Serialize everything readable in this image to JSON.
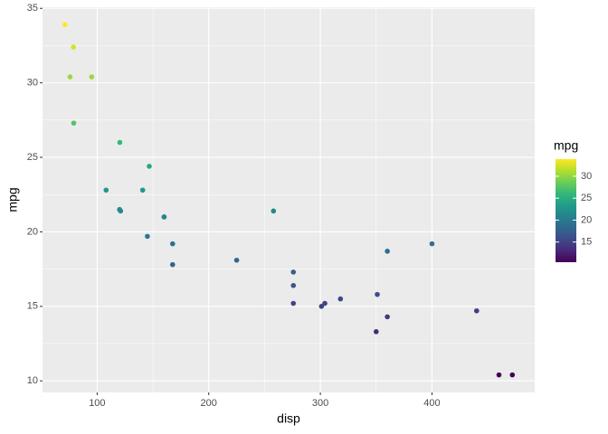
{
  "chart_data": {
    "type": "scatter",
    "x_label": "disp",
    "y_label": "mpg",
    "x": [
      160,
      160,
      108,
      258,
      360,
      225,
      360,
      146.7,
      140.8,
      167.6,
      167.6,
      275.8,
      275.8,
      275.8,
      472,
      460,
      440,
      78.7,
      75.7,
      71.1,
      120.1,
      318,
      304,
      350,
      400,
      79,
      120.3,
      95.1,
      351,
      145,
      301,
      121
    ],
    "values": [
      21.0,
      21.0,
      22.8,
      21.4,
      18.7,
      18.1,
      14.3,
      24.4,
      22.8,
      19.2,
      17.8,
      16.4,
      17.3,
      15.2,
      10.4,
      10.4,
      14.7,
      32.4,
      30.4,
      33.9,
      21.5,
      15.5,
      15.2,
      13.3,
      19.2,
      27.3,
      26.0,
      30.4,
      15.8,
      19.7,
      15.0,
      21.4
    ],
    "xlim": [
      51.05,
      492.05
    ],
    "xticks": [
      100,
      200,
      300,
      400
    ],
    "ylim": [
      9.225,
      35.075
    ],
    "yticks": [
      10,
      15,
      20,
      25,
      30,
      35
    ],
    "grid": true,
    "colorbar": {
      "title": "mpg",
      "lim": [
        10.4,
        33.9
      ],
      "ticks": [
        15,
        20,
        25,
        30
      ],
      "colors": [
        "#440154",
        "#482878",
        "#3e4a89",
        "#31688e",
        "#26828e",
        "#1f9e89",
        "#35b779",
        "#6dcd59",
        "#b4de2c",
        "#fde725"
      ]
    }
  }
}
